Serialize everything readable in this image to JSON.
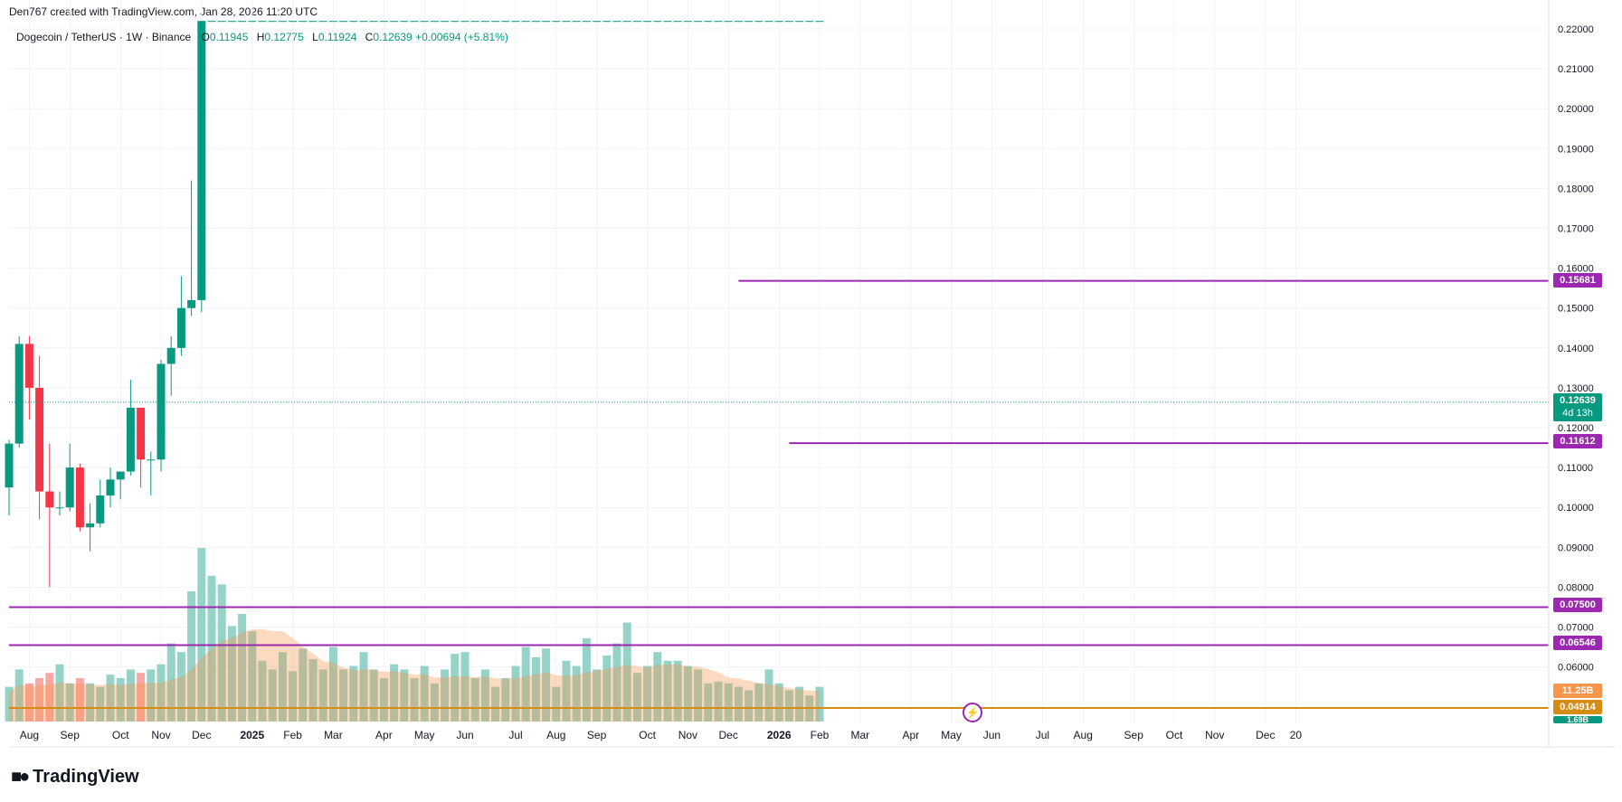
{
  "attribution": "Den767 created with TradingView.com, Jan 28, 2026 11:20 UTC",
  "legend": {
    "symbol": "Dogecoin / TetherUS · 1W · Binance",
    "open_label": "O",
    "open": "0.11945",
    "high_label": "H",
    "high": "0.12775",
    "low_label": "L",
    "low": "0.11924",
    "close_label": "C",
    "close": "0.12639",
    "change": "+0.00694 (+5.81%)"
  },
  "brand": "TradingView",
  "colors": {
    "up": "#089981",
    "down": "#f23645",
    "vol_up": "#8fd0c5",
    "vol_down": "#f9a19f",
    "level": "#9c27b0",
    "baseline": "#d58c12",
    "vol_ma": "#f7954a"
  },
  "tags": {
    "current_price": "0.12639",
    "countdown": "4d 13h",
    "volume": "11.25B",
    "baseline": "0.04914",
    "vol_small": "1.69B"
  },
  "chart_data": {
    "type": "candlestick",
    "y_axis": {
      "range": [
        0.0525,
        0.2225
      ],
      "ticks": [
        "0.22000",
        "0.21000",
        "0.20000",
        "0.19000",
        "0.18000",
        "0.17000",
        "0.16000",
        "0.15000",
        "0.14000",
        "0.13000",
        "0.12000",
        "0.11000",
        "0.10000",
        "0.09000",
        "0.08000",
        "0.07000",
        "0.06000"
      ]
    },
    "x_axis": {
      "labels": [
        "Aug",
        "Sep",
        "Oct",
        "Nov",
        "Dec",
        "2025",
        "Feb",
        "Mar",
        "Apr",
        "May",
        "Jun",
        "Jul",
        "Aug",
        "Sep",
        "Oct",
        "Nov",
        "Dec",
        "2026",
        "Feb",
        "Mar",
        "Apr",
        "May",
        "Jun",
        "Jul",
        "Aug",
        "Sep",
        "Oct",
        "Nov",
        "Dec",
        "20"
      ],
      "bold": [
        "2025",
        "2026"
      ],
      "label_bar_index": [
        2,
        6,
        11,
        15,
        19,
        24,
        28,
        32,
        37,
        41,
        45,
        50,
        54,
        58,
        63,
        67,
        71,
        76,
        80,
        84,
        89,
        93,
        97,
        102,
        106,
        111,
        115,
        119,
        124,
        127
      ]
    },
    "levels": [
      {
        "value": 0.15681,
        "label": "0.15681",
        "from_bar": 72
      },
      {
        "value": 0.11612,
        "label": "0.11612",
        "from_bar": 77
      },
      {
        "value": 0.075,
        "label": "0.07500",
        "from_bar": 0
      },
      {
        "value": 0.06546,
        "label": "0.06546",
        "from_bar": 0
      }
    ],
    "baseline": {
      "value": 0.04914,
      "label": "0.04914"
    },
    "current_price": 0.12639,
    "candles": [
      {
        "o": 0.105,
        "h": 0.117,
        "l": 0.098,
        "c": 0.116
      },
      {
        "o": 0.116,
        "h": 0.143,
        "l": 0.115,
        "c": 0.141
      },
      {
        "o": 0.141,
        "h": 0.143,
        "l": 0.122,
        "c": 0.13
      },
      {
        "o": 0.13,
        "h": 0.138,
        "l": 0.097,
        "c": 0.104
      },
      {
        "o": 0.104,
        "h": 0.116,
        "l": 0.08,
        "c": 0.1
      },
      {
        "o": 0.1,
        "h": 0.104,
        "l": 0.098,
        "c": 0.1
      },
      {
        "o": 0.1,
        "h": 0.116,
        "l": 0.099,
        "c": 0.11
      },
      {
        "o": 0.11,
        "h": 0.111,
        "l": 0.094,
        "c": 0.095
      },
      {
        "o": 0.095,
        "h": 0.101,
        "l": 0.089,
        "c": 0.096
      },
      {
        "o": 0.096,
        "h": 0.107,
        "l": 0.095,
        "c": 0.103
      },
      {
        "o": 0.103,
        "h": 0.11,
        "l": 0.1,
        "c": 0.107
      },
      {
        "o": 0.107,
        "h": 0.109,
        "l": 0.102,
        "c": 0.109
      },
      {
        "o": 0.109,
        "h": 0.132,
        "l": 0.108,
        "c": 0.125
      },
      {
        "o": 0.125,
        "h": 0.125,
        "l": 0.105,
        "c": 0.112
      },
      {
        "o": 0.112,
        "h": 0.114,
        "l": 0.103,
        "c": 0.112
      },
      {
        "o": 0.112,
        "h": 0.137,
        "l": 0.109,
        "c": 0.136
      },
      {
        "o": 0.136,
        "h": 0.143,
        "l": 0.128,
        "c": 0.14
      },
      {
        "o": 0.14,
        "h": 0.158,
        "l": 0.138,
        "c": 0.15
      },
      {
        "o": 0.15,
        "h": 0.182,
        "l": 0.148,
        "c": 0.152
      },
      {
        "o": 0.152,
        "h": 0.222,
        "l": 0.149,
        "c": 0.222
      },
      {
        "o": 0.222,
        "h": 0.222,
        "l": 0.222,
        "c": 0.222
      },
      {
        "o": 0.222,
        "h": 0.222,
        "l": 0.222,
        "c": 0.222
      },
      {
        "o": 0.222,
        "h": 0.222,
        "l": 0.222,
        "c": 0.222
      },
      {
        "o": 0.222,
        "h": 0.222,
        "l": 0.222,
        "c": 0.222
      },
      {
        "o": 0.222,
        "h": 0.222,
        "l": 0.222,
        "c": 0.222
      },
      {
        "o": 0.222,
        "h": 0.222,
        "l": 0.222,
        "c": 0.222
      },
      {
        "o": 0.222,
        "h": 0.222,
        "l": 0.222,
        "c": 0.222
      },
      {
        "o": 0.222,
        "h": 0.222,
        "l": 0.222,
        "c": 0.222
      },
      {
        "o": 0.222,
        "h": 0.222,
        "l": 0.222,
        "c": 0.222
      },
      {
        "o": 0.222,
        "h": 0.222,
        "l": 0.222,
        "c": 0.222
      },
      {
        "o": 0.222,
        "h": 0.222,
        "l": 0.222,
        "c": 0.222
      },
      {
        "o": 0.222,
        "h": 0.222,
        "l": 0.222,
        "c": 0.222
      },
      {
        "o": 0.222,
        "h": 0.222,
        "l": 0.222,
        "c": 0.222
      },
      {
        "o": 0.222,
        "h": 0.222,
        "l": 0.222,
        "c": 0.222
      },
      {
        "o": 0.222,
        "h": 0.222,
        "l": 0.222,
        "c": 0.222
      },
      {
        "o": 0.222,
        "h": 0.222,
        "l": 0.222,
        "c": 0.222
      },
      {
        "o": 0.222,
        "h": 0.222,
        "l": 0.222,
        "c": 0.222
      },
      {
        "o": 0.222,
        "h": 0.222,
        "l": 0.222,
        "c": 0.222
      },
      {
        "o": 0.222,
        "h": 0.222,
        "l": 0.222,
        "c": 0.222
      },
      {
        "o": 0.222,
        "h": 0.222,
        "l": 0.222,
        "c": 0.222
      },
      {
        "o": 0.222,
        "h": 0.222,
        "l": 0.222,
        "c": 0.222
      },
      {
        "o": 0.222,
        "h": 0.222,
        "l": 0.222,
        "c": 0.222
      },
      {
        "o": 0.222,
        "h": 0.222,
        "l": 0.222,
        "c": 0.222
      },
      {
        "o": 0.222,
        "h": 0.222,
        "l": 0.222,
        "c": 0.222
      },
      {
        "o": 0.222,
        "h": 0.222,
        "l": 0.222,
        "c": 0.222
      },
      {
        "o": 0.222,
        "h": 0.222,
        "l": 0.222,
        "c": 0.222
      },
      {
        "o": 0.222,
        "h": 0.222,
        "l": 0.222,
        "c": 0.222
      },
      {
        "o": 0.222,
        "h": 0.222,
        "l": 0.222,
        "c": 0.222
      },
      {
        "o": 0.222,
        "h": 0.222,
        "l": 0.222,
        "c": 0.222
      },
      {
        "o": 0.222,
        "h": 0.222,
        "l": 0.222,
        "c": 0.222
      },
      {
        "o": 0.222,
        "h": 0.222,
        "l": 0.222,
        "c": 0.222
      },
      {
        "o": 0.222,
        "h": 0.222,
        "l": 0.222,
        "c": 0.222
      },
      {
        "o": 0.222,
        "h": 0.222,
        "l": 0.222,
        "c": 0.222
      },
      {
        "o": 0.222,
        "h": 0.222,
        "l": 0.222,
        "c": 0.222
      },
      {
        "o": 0.222,
        "h": 0.222,
        "l": 0.222,
        "c": 0.222
      },
      {
        "o": 0.222,
        "h": 0.222,
        "l": 0.222,
        "c": 0.222
      },
      {
        "o": 0.222,
        "h": 0.222,
        "l": 0.222,
        "c": 0.222
      },
      {
        "o": 0.222,
        "h": 0.222,
        "l": 0.222,
        "c": 0.222
      },
      {
        "o": 0.222,
        "h": 0.222,
        "l": 0.222,
        "c": 0.222
      },
      {
        "o": 0.222,
        "h": 0.222,
        "l": 0.222,
        "c": 0.222
      },
      {
        "o": 0.222,
        "h": 0.222,
        "l": 0.222,
        "c": 0.222
      },
      {
        "o": 0.222,
        "h": 0.222,
        "l": 0.222,
        "c": 0.222
      },
      {
        "o": 0.222,
        "h": 0.222,
        "l": 0.222,
        "c": 0.222
      },
      {
        "o": 0.222,
        "h": 0.222,
        "l": 0.222,
        "c": 0.222
      },
      {
        "o": 0.222,
        "h": 0.222,
        "l": 0.222,
        "c": 0.222
      },
      {
        "o": 0.222,
        "h": 0.222,
        "l": 0.222,
        "c": 0.222
      },
      {
        "o": 0.222,
        "h": 0.222,
        "l": 0.222,
        "c": 0.222
      },
      {
        "o": 0.222,
        "h": 0.222,
        "l": 0.222,
        "c": 0.222
      },
      {
        "o": 0.222,
        "h": 0.222,
        "l": 0.222,
        "c": 0.222
      },
      {
        "o": 0.222,
        "h": 0.222,
        "l": 0.222,
        "c": 0.222
      },
      {
        "o": 0.222,
        "h": 0.222,
        "l": 0.222,
        "c": 0.222
      },
      {
        "o": 0.222,
        "h": 0.222,
        "l": 0.222,
        "c": 0.222
      },
      {
        "o": 0.222,
        "h": 0.222,
        "l": 0.222,
        "c": 0.222
      },
      {
        "o": 0.222,
        "h": 0.222,
        "l": 0.222,
        "c": 0.222
      },
      {
        "o": 0.222,
        "h": 0.222,
        "l": 0.222,
        "c": 0.222
      },
      {
        "o": 0.222,
        "h": 0.222,
        "l": 0.222,
        "c": 0.222
      },
      {
        "o": 0.222,
        "h": 0.222,
        "l": 0.222,
        "c": 0.222
      },
      {
        "o": 0.222,
        "h": 0.222,
        "l": 0.222,
        "c": 0.222
      },
      {
        "o": 0.222,
        "h": 0.222,
        "l": 0.222,
        "c": 0.222
      },
      {
        "o": 0.222,
        "h": 0.222,
        "l": 0.222,
        "c": 0.222
      },
      {
        "o": 0.222,
        "h": 0.222,
        "l": 0.222,
        "c": 0.222
      }
    ],
    "volume_mult": [
      0.2,
      0.3,
      0.22,
      0.25,
      0.28,
      0.33,
      0.22,
      0.25,
      0.22,
      0.2,
      0.27,
      0.25,
      0.3,
      0.28,
      0.3,
      0.33,
      0.45,
      0.4,
      0.75,
      1.0,
      0.84,
      0.79,
      0.55,
      0.62,
      0.52,
      0.35,
      0.3,
      0.4,
      0.29,
      0.42,
      0.36,
      0.3,
      0.43,
      0.3,
      0.32,
      0.4,
      0.3,
      0.25,
      0.33,
      0.3,
      0.25,
      0.32,
      0.22,
      0.3,
      0.39,
      0.4,
      0.25,
      0.3,
      0.2,
      0.25,
      0.32,
      0.43,
      0.37,
      0.42,
      0.2,
      0.35,
      0.32,
      0.48,
      0.3,
      0.38,
      0.45,
      0.57,
      0.28,
      0.32,
      0.4,
      0.35,
      0.35,
      0.32,
      0.3,
      0.22,
      0.23,
      0.22,
      0.2,
      0.18,
      0.22,
      0.3,
      0.22,
      0.18,
      0.2,
      0.15
    ]
  }
}
